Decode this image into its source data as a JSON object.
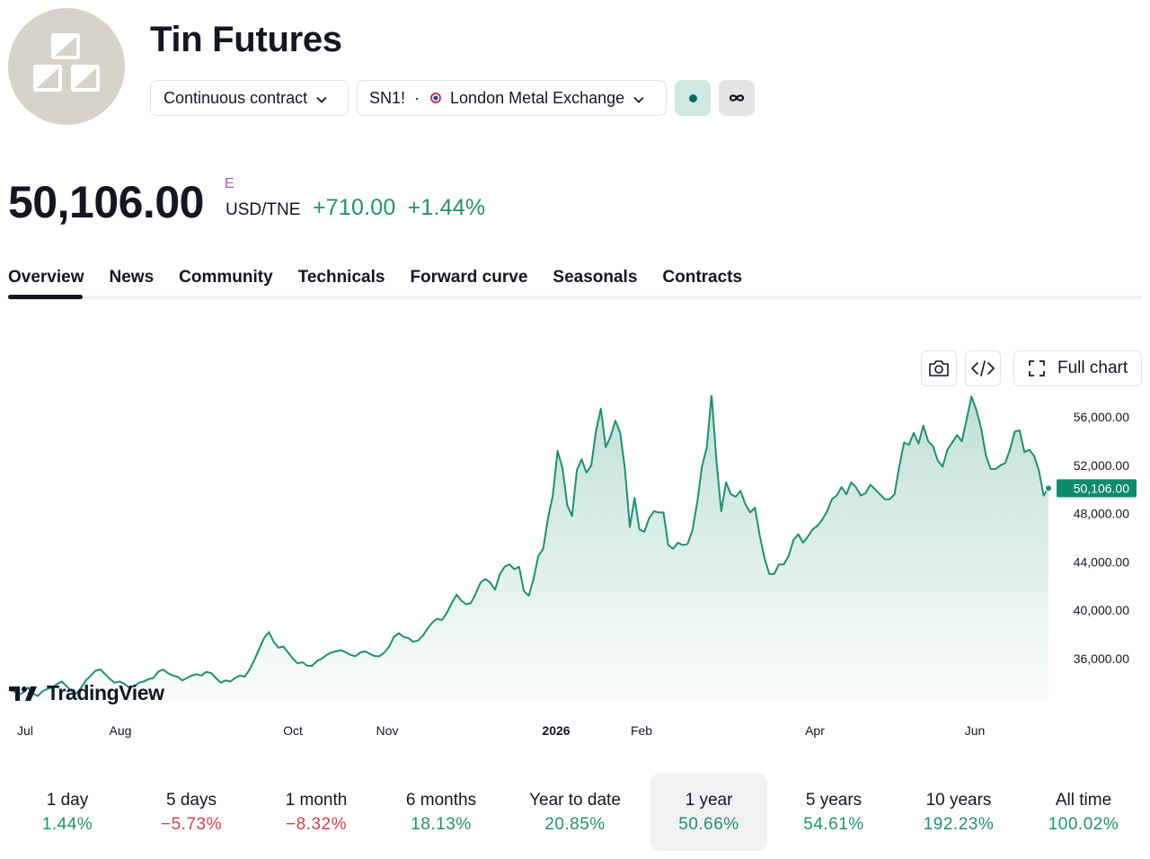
{
  "header": {
    "title": "Tin Futures",
    "contract_selector": "Continuous contract",
    "symbol": "SN1!",
    "exchange": "London Metal Exchange",
    "logo_icon": "metal-bars-icon",
    "market_status_icon": "green-dot-icon",
    "compare_icon": "infinity-icon"
  },
  "quote": {
    "price": "50,106.00",
    "price_flag": "E",
    "currency": "USD/TNE",
    "change": "+710.00",
    "change_pct": "+1.44%"
  },
  "tabs": [
    {
      "label": "Overview",
      "active": true
    },
    {
      "label": "News"
    },
    {
      "label": "Community"
    },
    {
      "label": "Technicals"
    },
    {
      "label": "Forward curve"
    },
    {
      "label": "Seasonals"
    },
    {
      "label": "Contracts"
    }
  ],
  "chart_toolbar": {
    "snapshot_icon": "camera-icon",
    "embed_icon": "code-icon",
    "full_chart_label": "Full chart"
  },
  "branding": {
    "tradingview_label": "TradingView"
  },
  "colors": {
    "accent": "#22906f",
    "line": "#1f8f72",
    "negative": "#d1414e",
    "text": "#131722"
  },
  "chart_data": {
    "type": "area",
    "x_tick_labels": [
      "Jul",
      "Aug",
      "Oct",
      "Nov",
      "2026",
      "Feb",
      "Apr",
      "Jun"
    ],
    "y_tick_labels": [
      "56,000.00",
      "52,000.00",
      "48,000.00",
      "44,000.00",
      "40,000.00",
      "36,000.00"
    ],
    "y_ticks": [
      56000,
      52000,
      48000,
      44000,
      40000,
      36000
    ],
    "ylim": [
      32500,
      57800
    ],
    "last_value": 50106,
    "last_value_label": "50,106.00",
    "series": [
      {
        "values": [
          33400,
          33300,
          33000,
          33200,
          33600,
          33100,
          32900,
          33300,
          33500,
          33600,
          33900,
          34100,
          33700,
          33300,
          33100,
          33600,
          34200,
          34600,
          35000,
          35100,
          34700,
          34300,
          34000,
          34100,
          33900,
          33600,
          33700,
          34000,
          34100,
          34300,
          34400,
          34900,
          35100,
          34800,
          34600,
          34500,
          34200,
          34400,
          34600,
          34700,
          34600,
          34900,
          34800,
          34400,
          34000,
          34200,
          34100,
          34400,
          34600,
          34500,
          35100,
          35900,
          36800,
          37700,
          38200,
          37400,
          36900,
          37000,
          36500,
          36000,
          35600,
          35700,
          35400,
          35400,
          35800,
          36000,
          36300,
          36500,
          36600,
          36700,
          36500,
          36300,
          36200,
          36500,
          36600,
          36400,
          36200,
          36200,
          36500,
          37000,
          37800,
          38100,
          37800,
          37700,
          37400,
          37500,
          37900,
          38500,
          39000,
          39300,
          39200,
          39800,
          40600,
          41300,
          40800,
          40500,
          40600,
          41400,
          42300,
          42600,
          42300,
          41700,
          43000,
          43600,
          43800,
          43400,
          43600,
          41600,
          41200,
          42600,
          44500,
          45100,
          47600,
          49500,
          53200,
          51800,
          48700,
          47800,
          51600,
          52500,
          51400,
          52000,
          54900,
          56700,
          53500,
          54400,
          55700,
          54700,
          51700,
          46900,
          49300,
          46700,
          46500,
          47600,
          48200,
          48100,
          48100,
          45400,
          45100,
          45600,
          45400,
          45500,
          46600,
          48900,
          51900,
          53500,
          57900,
          52400,
          48200,
          50600,
          49600,
          49400,
          49900,
          48800,
          48100,
          48500,
          46200,
          44300,
          43000,
          43000,
          43800,
          43800,
          44500,
          45800,
          46300,
          45600,
          46100,
          46700,
          47000,
          47500,
          48200,
          49200,
          49500,
          50200,
          49600,
          50600,
          50200,
          49500,
          49700,
          50400,
          50000,
          49600,
          49200,
          49200,
          49600,
          51900,
          53900,
          53700,
          54700,
          53800,
          55300,
          54000,
          53600,
          52400,
          51900,
          53300,
          53900,
          54500,
          54000,
          55800,
          57700,
          56600,
          55100,
          52800,
          51700,
          51700,
          52000,
          52200,
          53300,
          54800,
          54900,
          53100,
          53300,
          52800,
          51600,
          49500,
          50106
        ]
      }
    ],
    "grid": false,
    "ylabel_position": "right"
  },
  "periods": [
    {
      "label": "1 day",
      "value": "1.44%",
      "dir": "pos"
    },
    {
      "label": "5 days",
      "value": "−5.73%",
      "dir": "neg"
    },
    {
      "label": "1 month",
      "value": "−8.32%",
      "dir": "neg"
    },
    {
      "label": "6 months",
      "value": "18.13%",
      "dir": "pos"
    },
    {
      "label": "Year to date",
      "value": "20.85%",
      "dir": "pos"
    },
    {
      "label": "1 year",
      "value": "50.66%",
      "dir": "pos",
      "active": true
    },
    {
      "label": "5 years",
      "value": "54.61%",
      "dir": "pos"
    },
    {
      "label": "10 years",
      "value": "192.23%",
      "dir": "pos"
    },
    {
      "label": "All time",
      "value": "100.02%",
      "dir": "pos"
    }
  ]
}
